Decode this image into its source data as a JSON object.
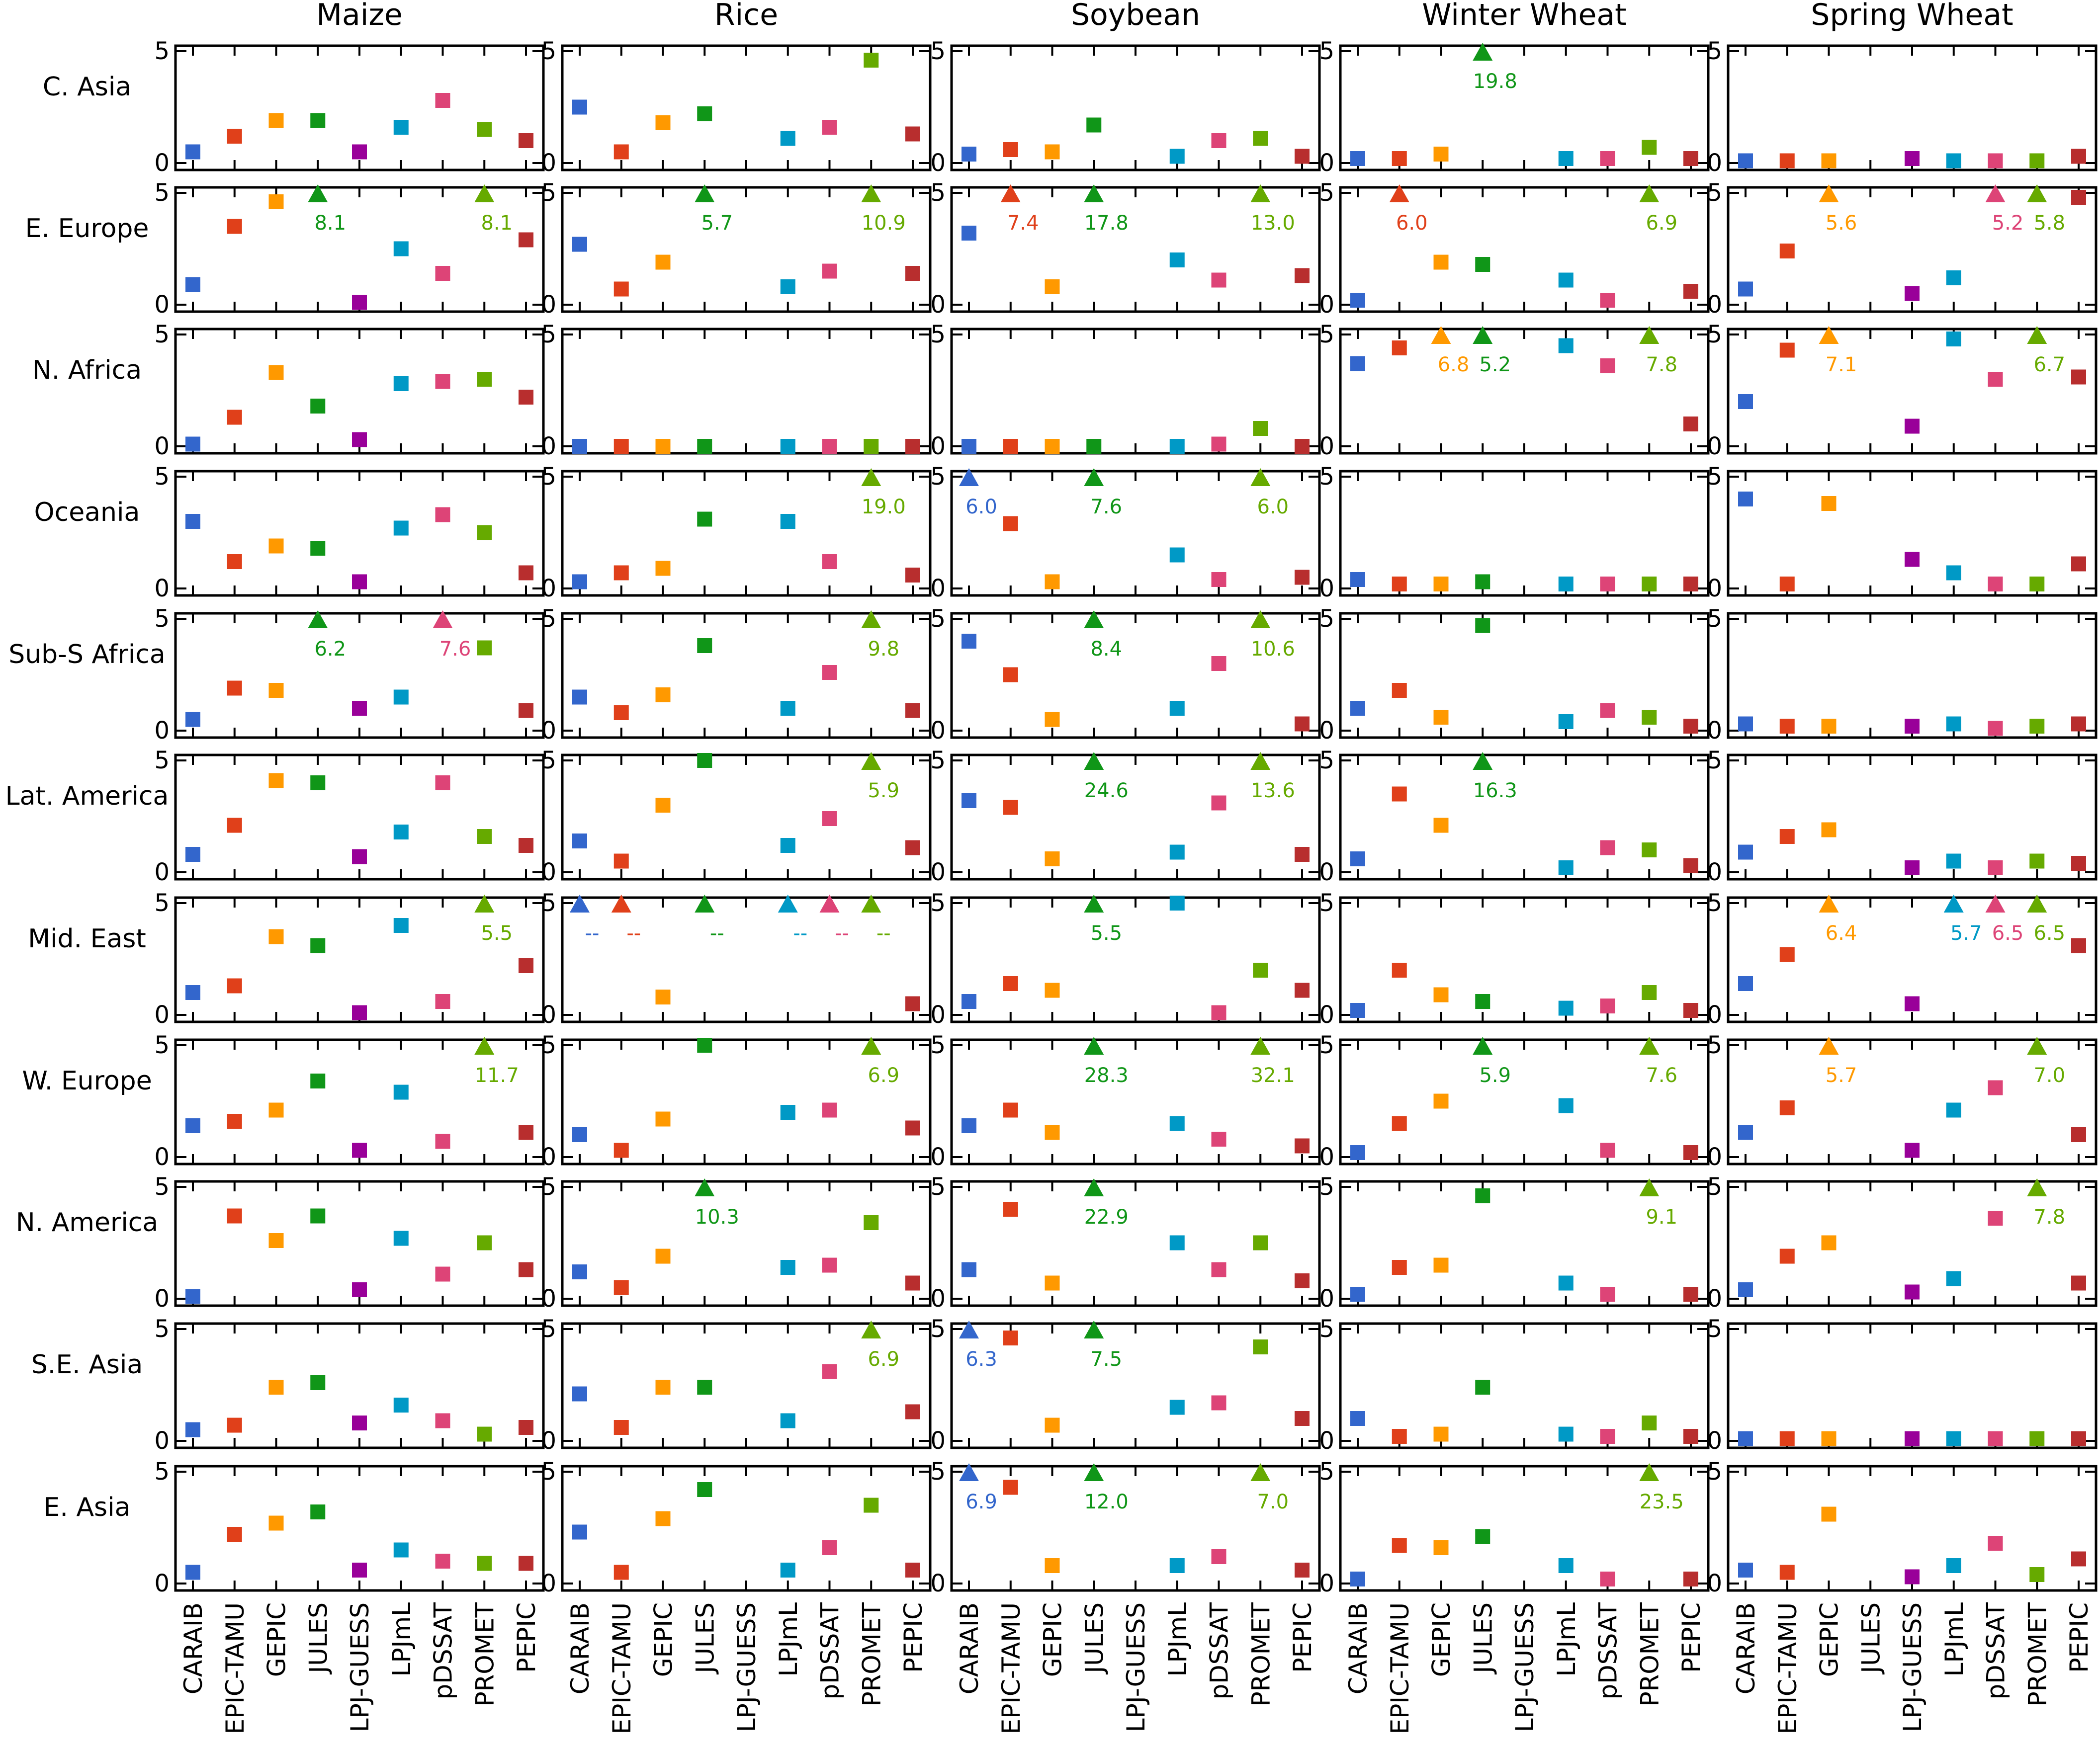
{
  "chart_data": {
    "type": "scatter",
    "crops": [
      "Maize",
      "Rice",
      "Soybean",
      "Winter Wheat",
      "Spring Wheat"
    ],
    "regions": [
      "C. Asia",
      "E. Europe",
      "N. Africa",
      "Oceania",
      "Sub-S Africa",
      "Lat. America",
      "Mid. East",
      "W. Europe",
      "N. America",
      "S.E. Asia",
      "E. Asia"
    ],
    "models": [
      "CARAIB",
      "EPIC-TAMU",
      "GEPIC",
      "JULES",
      "LPJ-GUESS",
      "LPJmL",
      "pDSSAT",
      "PROMET",
      "PEPIC"
    ],
    "ylim": [
      0,
      5
    ],
    "yticks": [
      "0",
      "5"
    ],
    "model_colors": {
      "CARAIB": "#3366cc",
      "EPIC-TAMU": "#e0401a",
      "GEPIC": "#ff9900",
      "JULES": "#109618",
      "LPJ-GUESS": "#990099",
      "LPJmL": "#0099c6",
      "pDSSAT": "#dd4477",
      "PROMET": "#66aa00",
      "PEPIC": "#b82e2e"
    },
    "note": "Values are per model in order: CARAIB, EPIC-TAMU, GEPIC, JULES, LPJ-GUESS, LPJmL, pDSSAT, PROMET, PEPIC. null = not plotted. Values greater than 5 are shown as triangles at the top with their value printed; the string '--' marks a triangle with the label '--'.",
    "values": {
      "Maize": [
        [
          0.5,
          1.2,
          1.9,
          1.9,
          0.5,
          1.6,
          2.8,
          1.5,
          1.0
        ],
        [
          0.9,
          3.5,
          4.6,
          "8.1",
          0.1,
          2.5,
          1.4,
          "8.1",
          2.9
        ],
        [
          0.1,
          1.3,
          3.3,
          1.8,
          0.3,
          2.8,
          2.9,
          3.0,
          2.2
        ],
        [
          3.0,
          1.2,
          1.9,
          1.8,
          0.3,
          2.7,
          3.3,
          2.5,
          0.7
        ],
        [
          0.5,
          1.9,
          1.8,
          "6.2",
          1.0,
          1.5,
          "7.6",
          3.7,
          0.9
        ],
        [
          0.8,
          2.1,
          4.1,
          4.0,
          0.7,
          1.8,
          4.0,
          1.6,
          1.2
        ],
        [
          1.0,
          1.3,
          3.5,
          3.1,
          0.1,
          4.0,
          0.6,
          "5.5",
          2.2
        ],
        [
          1.4,
          1.6,
          2.1,
          3.4,
          0.3,
          2.9,
          0.7,
          "11.7",
          1.1
        ],
        [
          0.1,
          3.7,
          2.6,
          3.7,
          0.4,
          2.7,
          1.1,
          2.5,
          1.3
        ],
        [
          0.5,
          0.7,
          2.4,
          2.6,
          0.8,
          1.6,
          0.9,
          0.3,
          0.6
        ],
        [
          0.5,
          2.2,
          2.7,
          3.2,
          0.6,
          1.5,
          1.0,
          0.9,
          0.9
        ]
      ],
      "Rice": [
        [
          2.5,
          0.5,
          1.8,
          2.2,
          null,
          1.1,
          1.6,
          4.6,
          1.3
        ],
        [
          2.7,
          0.7,
          1.9,
          "5.7",
          null,
          0.8,
          1.5,
          "10.9",
          1.4
        ],
        [
          0.0,
          0.0,
          0.0,
          0.0,
          null,
          0.0,
          0.0,
          0.0,
          0.0
        ],
        [
          0.3,
          0.7,
          0.9,
          3.1,
          null,
          3.0,
          1.2,
          "19.0",
          0.6
        ],
        [
          1.5,
          0.8,
          1.6,
          3.8,
          null,
          1.0,
          2.6,
          "9.8",
          0.9
        ],
        [
          1.4,
          0.5,
          3.0,
          5.0,
          null,
          1.2,
          2.4,
          "5.9",
          1.1
        ],
        [
          "--",
          "--",
          0.8,
          "--",
          null,
          "--",
          "--",
          "--",
          0.5
        ],
        [
          1.0,
          0.3,
          1.7,
          5.0,
          null,
          2.0,
          2.1,
          "6.9",
          1.3
        ],
        [
          1.2,
          0.5,
          1.9,
          "10.3",
          null,
          1.4,
          1.5,
          3.4,
          0.7
        ],
        [
          2.1,
          0.6,
          2.4,
          2.4,
          null,
          0.9,
          3.1,
          "6.9",
          1.3
        ],
        [
          2.3,
          0.5,
          2.9,
          4.2,
          null,
          0.6,
          1.6,
          3.5,
          0.6
        ]
      ],
      "Soybean": [
        [
          0.4,
          0.6,
          0.5,
          1.7,
          null,
          0.3,
          1.0,
          1.1,
          0.3
        ],
        [
          3.2,
          "7.4",
          0.8,
          "17.8",
          null,
          2.0,
          1.1,
          "13.0",
          1.3
        ],
        [
          0.0,
          0.0,
          0.0,
          0.0,
          null,
          0.0,
          0.1,
          0.8,
          0.0
        ],
        [
          "6.0",
          2.9,
          0.3,
          "7.6",
          null,
          1.5,
          0.4,
          "6.0",
          0.5
        ],
        [
          4.0,
          2.5,
          0.5,
          "8.4",
          null,
          1.0,
          3.0,
          "10.6",
          0.3
        ],
        [
          3.2,
          2.9,
          0.6,
          "24.6",
          null,
          0.9,
          3.1,
          "13.6",
          0.8
        ],
        [
          0.6,
          1.4,
          1.1,
          "5.5",
          null,
          5.0,
          0.1,
          2.0,
          1.1
        ],
        [
          1.4,
          2.1,
          1.1,
          "28.3",
          null,
          1.5,
          0.8,
          "32.1",
          0.5
        ],
        [
          1.3,
          4.0,
          0.7,
          "22.9",
          null,
          2.5,
          1.3,
          2.5,
          0.8
        ],
        [
          "6.3",
          4.6,
          0.7,
          "7.5",
          null,
          1.5,
          1.7,
          4.2,
          1.0
        ],
        [
          "6.9",
          4.3,
          0.8,
          "12.0",
          null,
          0.8,
          1.2,
          "7.0",
          0.6
        ]
      ],
      "Winter Wheat": [
        [
          0.2,
          0.2,
          0.4,
          "19.8",
          null,
          0.2,
          0.2,
          0.7,
          0.2
        ],
        [
          0.2,
          "6.0",
          1.9,
          1.8,
          null,
          1.1,
          0.2,
          "6.9",
          0.6
        ],
        [
          3.7,
          4.4,
          "6.8",
          "5.2",
          null,
          4.5,
          3.6,
          "7.8",
          1.0
        ],
        [
          0.4,
          0.2,
          0.2,
          0.3,
          null,
          0.2,
          0.2,
          0.2,
          0.2
        ],
        [
          1.0,
          1.8,
          0.6,
          4.7,
          null,
          0.4,
          0.9,
          0.6,
          0.2
        ],
        [
          0.6,
          3.5,
          2.1,
          "16.3",
          null,
          0.2,
          1.1,
          1.0,
          0.3
        ],
        [
          0.2,
          2.0,
          0.9,
          0.6,
          null,
          0.3,
          0.4,
          1.0,
          0.2
        ],
        [
          0.2,
          1.5,
          2.5,
          "5.9",
          null,
          2.3,
          0.3,
          "7.6",
          0.2
        ],
        [
          0.2,
          1.4,
          1.5,
          4.6,
          null,
          0.7,
          0.2,
          "9.1",
          0.2
        ],
        [
          1.0,
          0.2,
          0.3,
          2.4,
          null,
          0.3,
          0.2,
          0.8,
          0.2
        ],
        [
          0.2,
          1.7,
          1.6,
          2.1,
          null,
          0.8,
          0.2,
          "23.5",
          0.2
        ]
      ],
      "Spring Wheat": [
        [
          0.1,
          0.1,
          0.1,
          null,
          0.2,
          0.1,
          0.1,
          0.1,
          0.3
        ],
        [
          0.7,
          2.4,
          "5.6",
          null,
          0.5,
          1.2,
          "5.2",
          "5.8",
          4.8
        ],
        [
          2.0,
          4.3,
          "7.1",
          null,
          0.9,
          4.8,
          3.0,
          "6.7",
          3.1
        ],
        [
          4.0,
          0.2,
          3.8,
          null,
          1.3,
          0.7,
          0.2,
          0.2,
          1.1
        ],
        [
          0.3,
          0.2,
          0.2,
          null,
          0.2,
          0.3,
          0.1,
          0.2,
          0.3
        ],
        [
          0.9,
          1.6,
          1.9,
          null,
          0.2,
          0.5,
          0.2,
          0.5,
          0.4
        ],
        [
          1.4,
          2.7,
          "6.4",
          null,
          0.5,
          "5.7",
          "6.5",
          "6.5",
          3.1
        ],
        [
          1.1,
          2.2,
          "5.7",
          null,
          0.3,
          2.1,
          3.1,
          "7.0",
          1.0
        ],
        [
          0.4,
          1.9,
          2.5,
          null,
          0.3,
          0.9,
          3.6,
          "7.8",
          0.7
        ],
        [
          0.1,
          0.1,
          0.1,
          null,
          0.1,
          0.1,
          0.1,
          0.1,
          0.1
        ],
        [
          0.6,
          0.5,
          3.1,
          null,
          0.3,
          0.8,
          1.8,
          0.4,
          1.1
        ]
      ]
    }
  }
}
